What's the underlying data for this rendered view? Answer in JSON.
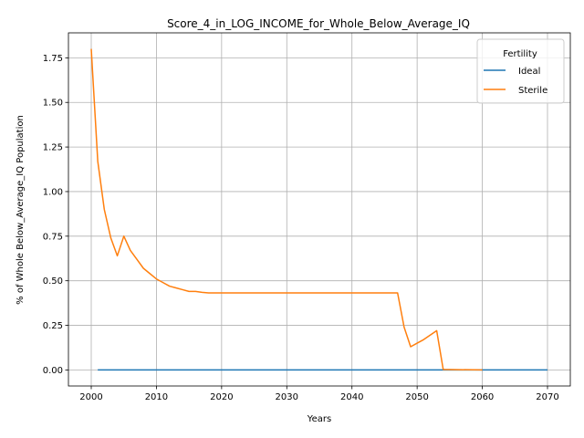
{
  "chart_data": {
    "type": "line",
    "title": "Score_4_in_LOG_INCOME_for_Whole_Below_Average_IQ",
    "xlabel": "Years",
    "ylabel": "% of Whole Below_Average_IQ Population",
    "xlim": [
      1996.5,
      2073.5
    ],
    "ylim": [
      -0.09,
      1.89
    ],
    "x_ticks": [
      2000,
      2010,
      2020,
      2030,
      2040,
      2050,
      2060,
      2070
    ],
    "y_ticks": [
      0.0,
      0.25,
      0.5,
      0.75,
      1.0,
      1.25,
      1.5,
      1.75
    ],
    "x_tick_labels": [
      "2000",
      "2010",
      "2020",
      "2030",
      "2040",
      "2050",
      "2060",
      "2070"
    ],
    "y_tick_labels": [
      "0.00",
      "0.25",
      "0.50",
      "0.75",
      "1.00",
      "1.25",
      "1.50",
      "1.75"
    ],
    "grid": true,
    "legend": {
      "title": "Fertility",
      "placement": "top-right"
    },
    "series": [
      {
        "name": "Ideal",
        "color": "#1f77b4",
        "points": [
          [
            2001,
            0.0
          ],
          [
            2070,
            0.0
          ]
        ]
      },
      {
        "name": "Sterile",
        "color": "#ff7f0e",
        "points": [
          [
            2000,
            1.8
          ],
          [
            2001,
            1.17
          ],
          [
            2002,
            0.9
          ],
          [
            2003,
            0.74
          ],
          [
            2004,
            0.64
          ],
          [
            2005,
            0.75
          ],
          [
            2006,
            0.67
          ],
          [
            2007,
            0.62
          ],
          [
            2008,
            0.57
          ],
          [
            2009,
            0.54
          ],
          [
            2010,
            0.51
          ],
          [
            2011,
            0.49
          ],
          [
            2012,
            0.47
          ],
          [
            2013,
            0.46
          ],
          [
            2014,
            0.45
          ],
          [
            2015,
            0.44
          ],
          [
            2016,
            0.44
          ],
          [
            2017,
            0.435
          ],
          [
            2018,
            0.432
          ],
          [
            2019,
            0.432
          ],
          [
            2020,
            0.432
          ],
          [
            2030,
            0.432
          ],
          [
            2040,
            0.432
          ],
          [
            2047,
            0.432
          ],
          [
            2048,
            0.24
          ],
          [
            2049,
            0.13
          ],
          [
            2050,
            0.15
          ],
          [
            2051,
            0.17
          ],
          [
            2052,
            0.195
          ],
          [
            2053,
            0.22
          ],
          [
            2054,
            0.003
          ],
          [
            2055,
            0.002
          ],
          [
            2060,
            0.0
          ]
        ]
      }
    ]
  }
}
